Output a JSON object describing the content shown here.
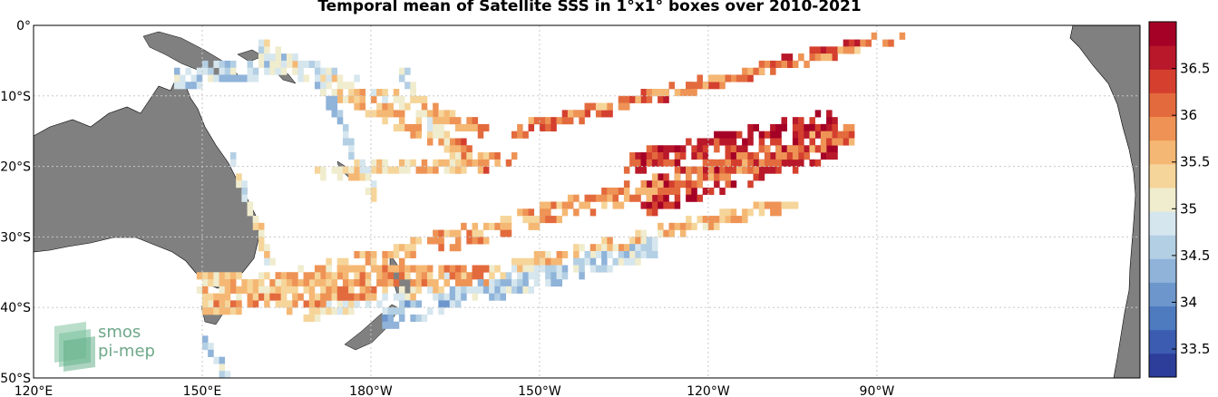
{
  "title": "Temporal mean of Satellite SSS in 1°x1° boxes over 2010-2021",
  "lat_ticks": [
    {
      "value": 0,
      "label": "0°"
    },
    {
      "value": -10,
      "label": "10°S"
    },
    {
      "value": -20,
      "label": "20°S"
    },
    {
      "value": -30,
      "label": "30°S"
    },
    {
      "value": -40,
      "label": "40°S"
    },
    {
      "value": -50,
      "label": "50°S"
    }
  ],
  "lon_ticks": [
    {
      "value": 120,
      "label": "120°E"
    },
    {
      "value": 150,
      "label": "150°E"
    },
    {
      "value": 180,
      "label": "180°W"
    },
    {
      "value": 210,
      "label": "150°W"
    },
    {
      "value": 240,
      "label": "120°W"
    },
    {
      "value": 270,
      "label": "90°W"
    }
  ],
  "colorbar": {
    "min": 33.2,
    "max": 37.0,
    "ticks": [
      "33.5",
      "34",
      "34.5",
      "35",
      "35.5",
      "36",
      "36.5"
    ],
    "colors": [
      "#2d3d9a",
      "#3b5cb0",
      "#4e7ac0",
      "#6d96cc",
      "#8fb3d9",
      "#b3cfe4",
      "#d6e6ee",
      "#f0ecce",
      "#f6d59a",
      "#f5b874",
      "#ee9355",
      "#e36a3d",
      "#d43f2e",
      "#b8182a",
      "#a50026"
    ]
  },
  "logo": {
    "line1": "smos",
    "line2": "pi-mep"
  },
  "colors": {
    "land": "#808080",
    "grid": "#c8c8c8",
    "frame": "#000000"
  }
}
